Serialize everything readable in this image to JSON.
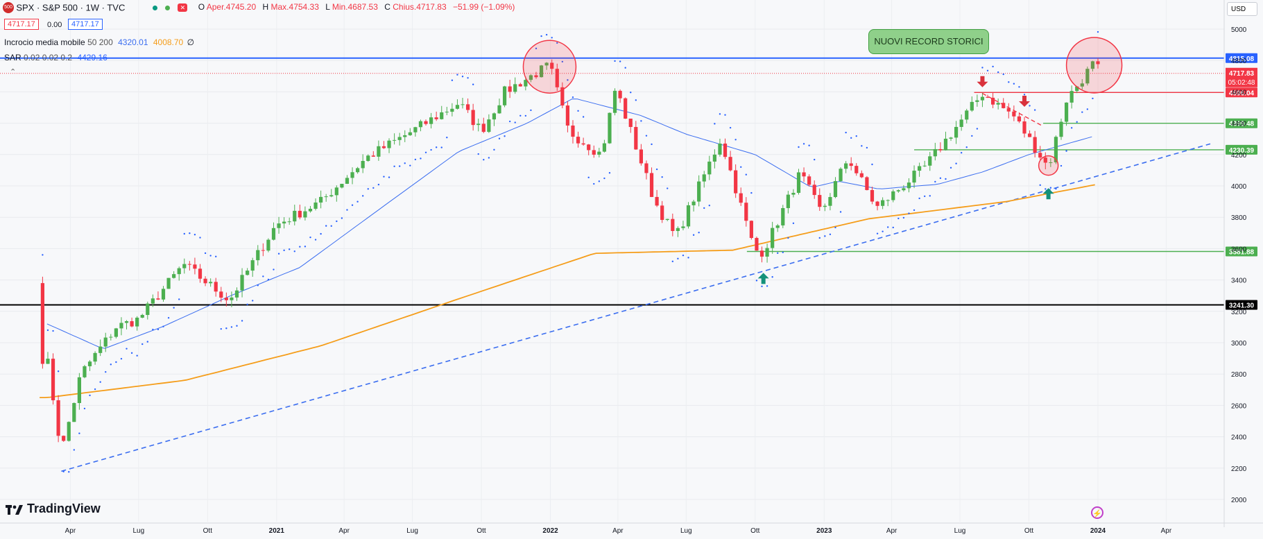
{
  "header": {
    "badge": "500",
    "symbol": "SPX · S&P 500 · 1W · TVC",
    "ohlc": {
      "o_label": "O",
      "o_value": "Aper.4745.20",
      "h_label": "H",
      "h_value": "Max.4754.33",
      "l_label": "L",
      "l_value": "Min.4687.53",
      "c_label": "C",
      "c_value": "Chius.4717.83",
      "change": "−51.99 (−1.09%)"
    },
    "sell_price": "4717.17",
    "spread": "0.00",
    "buy_price": "4717.17",
    "currency": "USD"
  },
  "indicators": {
    "ma_name": "Incrocio media mobile",
    "ma_params": "50 200",
    "ma50_value": "4320.01",
    "ma200_value": "4008.70",
    "ma_extra": "∅",
    "sar_name": "SAR",
    "sar_params": "0.02 0.02 0.2",
    "sar_value": "4429.16"
  },
  "annotation": "NUOVI RECORD STORICI",
  "brand": "TradingView",
  "colors": {
    "up": "#4caf50",
    "down": "#f23645",
    "ma50": "#3a6df0",
    "ma200": "#f59d1a",
    "sar": "#2962ff",
    "trend": "#3a6df0",
    "support": "#4caf50",
    "resistance": "#f23645"
  },
  "chart_data": {
    "type": "candlestick",
    "y_axis_ticks": [
      2000,
      2200,
      2400,
      2600,
      2800,
      3000,
      3200,
      3400,
      3600,
      3800,
      4000,
      4200,
      4400,
      4600,
      4800,
      5000
    ],
    "ylim": [
      1995,
      5165
    ],
    "x_axis_labels": [
      "Apr",
      "Lug",
      "Ott",
      "2021",
      "Apr",
      "Lug",
      "Ott",
      "2022",
      "Apr",
      "Lug",
      "Ott",
      "2023",
      "Apr",
      "Lug",
      "Ott",
      "2024",
      "Apr"
    ],
    "x_axis_labels_bold": [
      "2021",
      "2022",
      "2023",
      "2024"
    ],
    "price_levels": [
      {
        "value": "4815.08",
        "price": 4815.08,
        "color": "#2962ff",
        "style": "full"
      },
      {
        "value": "4596.04",
        "price": 4596.04,
        "color": "#f23645",
        "style": "right-from-2023-07"
      },
      {
        "value": "4399.48",
        "price": 4399.48,
        "color": "#4caf50",
        "style": "right-from-2023-10"
      },
      {
        "value": "4230.39",
        "price": 4230.39,
        "color": "#4caf50",
        "style": "right-from-2023-05"
      },
      {
        "value": "3581.88",
        "price": 3581.88,
        "color": "#4caf50",
        "style": "right-from-2022-10"
      },
      {
        "value": "3241.30",
        "price": 3241.3,
        "color": "#000000",
        "style": "full"
      }
    ],
    "current_price": {
      "value": "4717.83",
      "countdown": "05:02:48",
      "price": 4717.83
    },
    "weekly_closes_keypoints": [
      [
        "2020-03-01",
        2900
      ],
      [
        "2020-03-20",
        2300
      ],
      [
        "2020-04-15",
        2800
      ],
      [
        "2020-06-01",
        3100
      ],
      [
        "2020-07-01",
        3150
      ],
      [
        "2020-08-30",
        3500
      ],
      [
        "2020-10-30",
        3270
      ],
      [
        "2020-12-31",
        3750
      ],
      [
        "2021-03-01",
        3900
      ],
      [
        "2021-05-01",
        4180
      ],
      [
        "2021-07-01",
        4350
      ],
      [
        "2021-09-01",
        4530
      ],
      [
        "2021-10-01",
        4350
      ],
      [
        "2021-11-01",
        4600
      ],
      [
        "2021-12-31",
        4770
      ],
      [
        "2022-01-25",
        4350
      ],
      [
        "2022-03-10",
        4200
      ],
      [
        "2022-03-29",
        4630
      ],
      [
        "2022-05-20",
        3900
      ],
      [
        "2022-06-17",
        3670
      ],
      [
        "2022-08-16",
        4300
      ],
      [
        "2022-09-30",
        3590
      ],
      [
        "2022-10-12",
        3580
      ],
      [
        "2022-11-30",
        4080
      ],
      [
        "2022-12-28",
        3830
      ],
      [
        "2023-02-02",
        4180
      ],
      [
        "2023-03-12",
        3860
      ],
      [
        "2023-05-15",
        4120
      ],
      [
        "2023-07-31",
        4590
      ],
      [
        "2023-09-10",
        4450
      ],
      [
        "2023-10-27",
        4117
      ],
      [
        "2023-11-20",
        4550
      ],
      [
        "2023-12-27",
        4785
      ],
      [
        "2024-01-05",
        4718
      ]
    ],
    "ma50_keypoints": [
      [
        "2020-03-01",
        3120
      ],
      [
        "2020-05-15",
        2960
      ],
      [
        "2020-08-01",
        3100
      ],
      [
        "2020-11-01",
        3300
      ],
      [
        "2021-02-01",
        3480
      ],
      [
        "2021-06-01",
        3900
      ],
      [
        "2021-09-01",
        4220
      ],
      [
        "2021-12-01",
        4400
      ],
      [
        "2022-02-01",
        4560
      ],
      [
        "2022-05-01",
        4450
      ],
      [
        "2022-07-01",
        4330
      ],
      [
        "2022-10-01",
        4200
      ],
      [
        "2022-12-15",
        3990
      ],
      [
        "2023-01-20",
        4030
      ],
      [
        "2023-03-15",
        3980
      ],
      [
        "2023-06-01",
        4010
      ],
      [
        "2023-08-01",
        4090
      ],
      [
        "2023-10-01",
        4200
      ],
      [
        "2023-12-29",
        4320
      ]
    ],
    "ma200_keypoints": [
      [
        "2020-03-01",
        2650
      ],
      [
        "2020-09-01",
        2760
      ],
      [
        "2021-03-01",
        2980
      ],
      [
        "2021-09-01",
        3280
      ],
      [
        "2022-03-01",
        3570
      ],
      [
        "2022-09-01",
        3590
      ],
      [
        "2023-03-01",
        3790
      ],
      [
        "2023-09-01",
        3900
      ],
      [
        "2023-12-29",
        4008
      ]
    ],
    "trendline": [
      [
        "2020-03-20",
        2180
      ],
      [
        "2023-12-29",
        4060
      ]
    ]
  }
}
